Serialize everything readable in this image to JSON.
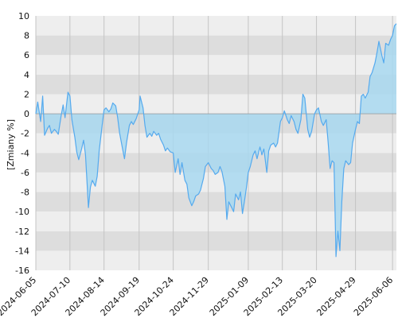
{
  "chart_data": {
    "type": "area",
    "title": "",
    "xlabel": "",
    "ylabel": "[Zmiany %]",
    "ylim": [
      -16,
      10
    ],
    "y_ticks": [
      -16,
      -14,
      -12,
      -10,
      -8,
      -6,
      -4,
      -2,
      0,
      2,
      4,
      6,
      8,
      10
    ],
    "x_range": [
      "2024-06-05",
      "2025-06-10"
    ],
    "x_ticks": [
      "2024-06-05",
      "2024-07-10",
      "2024-08-14",
      "2024-09-19",
      "2024-10-24",
      "2024-11-29",
      "2025-01-09",
      "2025-02-13",
      "2025-03-20",
      "2025-04-29",
      "2025-06-06"
    ],
    "grid": true,
    "legend": "none",
    "colors": {
      "line": "#55aaee",
      "fill": "#a8d8f0",
      "band_light": "#eeeeee",
      "band_dark": "#dddddd"
    },
    "series": [
      {
        "values": [
          [
            "2024-06-05",
            0.0
          ],
          [
            "2024-06-07",
            1.2
          ],
          [
            "2024-06-10",
            -0.8
          ],
          [
            "2024-06-12",
            1.8
          ],
          [
            "2024-06-14",
            -2.2
          ],
          [
            "2024-06-17",
            -1.5
          ],
          [
            "2024-06-19",
            -1.2
          ],
          [
            "2024-06-21",
            -2.0
          ],
          [
            "2024-06-24",
            -1.6
          ],
          [
            "2024-06-26",
            -1.8
          ],
          [
            "2024-06-28",
            -2.1
          ],
          [
            "2024-07-01",
            -0.2
          ],
          [
            "2024-07-03",
            0.9
          ],
          [
            "2024-07-05",
            -0.4
          ],
          [
            "2024-07-08",
            2.2
          ],
          [
            "2024-07-10",
            1.8
          ],
          [
            "2024-07-12",
            -0.6
          ],
          [
            "2024-07-15",
            -2.4
          ],
          [
            "2024-07-17",
            -3.9
          ],
          [
            "2024-07-19",
            -4.7
          ],
          [
            "2024-07-22",
            -3.6
          ],
          [
            "2024-07-24",
            -2.7
          ],
          [
            "2024-07-26",
            -4.2
          ],
          [
            "2024-07-29",
            -9.6
          ],
          [
            "2024-07-31",
            -7.5
          ],
          [
            "2024-08-02",
            -6.8
          ],
          [
            "2024-08-05",
            -7.4
          ],
          [
            "2024-08-07",
            -6.4
          ],
          [
            "2024-08-09",
            -3.8
          ],
          [
            "2024-08-12",
            -1.2
          ],
          [
            "2024-08-14",
            0.4
          ],
          [
            "2024-08-16",
            0.6
          ],
          [
            "2024-08-19",
            0.2
          ],
          [
            "2024-08-21",
            0.5
          ],
          [
            "2024-08-23",
            1.1
          ],
          [
            "2024-08-26",
            0.8
          ],
          [
            "2024-08-28",
            -0.4
          ],
          [
            "2024-08-30",
            -2.0
          ],
          [
            "2024-09-02",
            -3.6
          ],
          [
            "2024-09-04",
            -4.6
          ],
          [
            "2024-09-06",
            -3.0
          ],
          [
            "2024-09-09",
            -1.2
          ],
          [
            "2024-09-11",
            -0.8
          ],
          [
            "2024-09-13",
            -1.1
          ],
          [
            "2024-09-16",
            -0.5
          ],
          [
            "2024-09-19",
            0.4
          ],
          [
            "2024-09-20",
            1.8
          ],
          [
            "2024-09-23",
            0.6
          ],
          [
            "2024-09-25",
            -1.2
          ],
          [
            "2024-09-27",
            -2.4
          ],
          [
            "2024-09-30",
            -2.0
          ],
          [
            "2024-10-02",
            -2.3
          ],
          [
            "2024-10-04",
            -1.8
          ],
          [
            "2024-10-07",
            -2.2
          ],
          [
            "2024-10-09",
            -2.0
          ],
          [
            "2024-10-11",
            -2.6
          ],
          [
            "2024-10-14",
            -3.2
          ],
          [
            "2024-10-16",
            -3.8
          ],
          [
            "2024-10-18",
            -3.5
          ],
          [
            "2024-10-21",
            -3.9
          ],
          [
            "2024-10-24",
            -4.0
          ],
          [
            "2024-10-26",
            -6.0
          ],
          [
            "2024-10-29",
            -4.6
          ],
          [
            "2024-10-31",
            -6.2
          ],
          [
            "2024-11-02",
            -5.0
          ],
          [
            "2024-11-05",
            -6.8
          ],
          [
            "2024-11-07",
            -7.2
          ],
          [
            "2024-11-09",
            -8.6
          ],
          [
            "2024-11-12",
            -9.4
          ],
          [
            "2024-11-14",
            -9.0
          ],
          [
            "2024-11-16",
            -8.4
          ],
          [
            "2024-11-19",
            -8.2
          ],
          [
            "2024-11-21",
            -7.8
          ],
          [
            "2024-11-24",
            -6.6
          ],
          [
            "2024-11-26",
            -5.4
          ],
          [
            "2024-11-29",
            -5.0
          ],
          [
            "2024-12-02",
            -5.6
          ],
          [
            "2024-12-04",
            -5.8
          ],
          [
            "2024-12-06",
            -6.2
          ],
          [
            "2024-12-09",
            -6.0
          ],
          [
            "2024-12-11",
            -5.4
          ],
          [
            "2024-12-13",
            -5.9
          ],
          [
            "2024-12-16",
            -7.4
          ],
          [
            "2024-12-18",
            -10.8
          ],
          [
            "2024-12-20",
            -9.0
          ],
          [
            "2024-12-23",
            -9.6
          ],
          [
            "2024-12-25",
            -10.0
          ],
          [
            "2024-12-27",
            -8.2
          ],
          [
            "2024-12-30",
            -8.8
          ],
          [
            "2025-01-01",
            -8.0
          ],
          [
            "2025-01-03",
            -10.2
          ],
          [
            "2025-01-05",
            -9.0
          ],
          [
            "2025-01-07",
            -7.6
          ],
          [
            "2025-01-09",
            -6.0
          ],
          [
            "2025-01-11",
            -5.4
          ],
          [
            "2025-01-14",
            -4.2
          ],
          [
            "2025-01-16",
            -3.8
          ],
          [
            "2025-01-18",
            -4.6
          ],
          [
            "2025-01-21",
            -3.4
          ],
          [
            "2025-01-23",
            -4.2
          ],
          [
            "2025-01-25",
            -3.6
          ],
          [
            "2025-01-28",
            -6.0
          ],
          [
            "2025-01-30",
            -3.8
          ],
          [
            "2025-02-01",
            -3.2
          ],
          [
            "2025-02-04",
            -3.0
          ],
          [
            "2025-02-06",
            -3.4
          ],
          [
            "2025-02-08",
            -3.0
          ],
          [
            "2025-02-11",
            -0.8
          ],
          [
            "2025-02-13",
            -0.4
          ],
          [
            "2025-02-15",
            0.3
          ],
          [
            "2025-02-18",
            -0.6
          ],
          [
            "2025-02-20",
            -1.0
          ],
          [
            "2025-02-22",
            -0.2
          ],
          [
            "2025-02-25",
            -0.8
          ],
          [
            "2025-02-27",
            -1.6
          ],
          [
            "2025-03-01",
            -2.0
          ],
          [
            "2025-03-04",
            -0.6
          ],
          [
            "2025-03-06",
            2.0
          ],
          [
            "2025-03-08",
            1.6
          ],
          [
            "2025-03-11",
            -1.6
          ],
          [
            "2025-03-13",
            -2.4
          ],
          [
            "2025-03-15",
            -1.8
          ],
          [
            "2025-03-18",
            0.0
          ],
          [
            "2025-03-20",
            0.4
          ],
          [
            "2025-03-22",
            0.6
          ],
          [
            "2025-03-25",
            -0.8
          ],
          [
            "2025-03-27",
            -1.2
          ],
          [
            "2025-03-30",
            -0.6
          ],
          [
            "2025-04-01",
            -3.0
          ],
          [
            "2025-04-03",
            -5.6
          ],
          [
            "2025-04-05",
            -4.8
          ],
          [
            "2025-04-07",
            -5.0
          ],
          [
            "2025-04-09",
            -14.6
          ],
          [
            "2025-04-11",
            -12.0
          ],
          [
            "2025-04-13",
            -14.0
          ],
          [
            "2025-04-15",
            -9.0
          ],
          [
            "2025-04-17",
            -5.6
          ],
          [
            "2025-04-19",
            -4.8
          ],
          [
            "2025-04-22",
            -5.2
          ],
          [
            "2025-04-24",
            -5.0
          ],
          [
            "2025-04-26",
            -3.0
          ],
          [
            "2025-04-29",
            -1.6
          ],
          [
            "2025-05-01",
            -0.8
          ],
          [
            "2025-05-03",
            -1.0
          ],
          [
            "2025-05-05",
            1.8
          ],
          [
            "2025-05-07",
            2.0
          ],
          [
            "2025-05-09",
            1.6
          ],
          [
            "2025-05-12",
            2.2
          ],
          [
            "2025-05-14",
            3.8
          ],
          [
            "2025-05-16",
            4.2
          ],
          [
            "2025-05-19",
            5.2
          ],
          [
            "2025-05-21",
            6.2
          ],
          [
            "2025-05-23",
            7.4
          ],
          [
            "2025-05-26",
            6.0
          ],
          [
            "2025-05-28",
            5.2
          ],
          [
            "2025-05-30",
            7.2
          ],
          [
            "2025-06-02",
            7.0
          ],
          [
            "2025-06-04",
            7.6
          ],
          [
            "2025-06-06",
            8.0
          ],
          [
            "2025-06-08",
            9.0
          ],
          [
            "2025-06-10",
            9.2
          ]
        ]
      }
    ]
  }
}
